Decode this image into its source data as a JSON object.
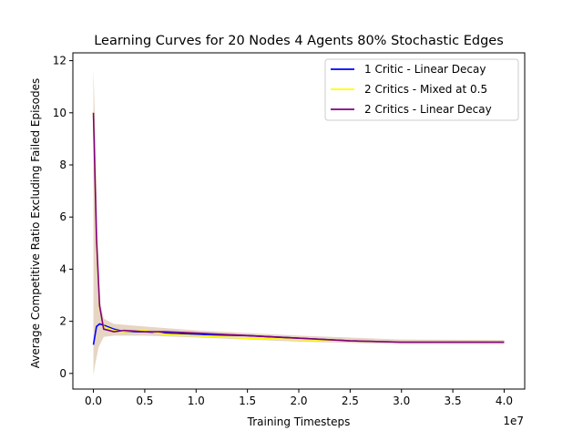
{
  "chart_data": {
    "type": "line",
    "title": "Learning Curves for 20 Nodes 4 Agents 80% Stochastic Edges",
    "xlabel": "Training Timesteps",
    "ylabel": "Average Competitive Ratio Excluding Failed Episodes",
    "x_offset_label": "1e7",
    "xlim": [
      -0.2,
      4.2
    ],
    "ylim": [
      -0.6,
      12.3
    ],
    "x_ticks": [
      0.0,
      0.5,
      1.0,
      1.5,
      2.0,
      2.5,
      3.0,
      3.5,
      4.0
    ],
    "x_tick_labels": [
      "0.0",
      "0.5",
      "1.0",
      "1.5",
      "2.0",
      "2.5",
      "3.0",
      "3.5",
      "4.0"
    ],
    "y_ticks": [
      0,
      2,
      4,
      6,
      8,
      10,
      12
    ],
    "y_tick_labels": [
      "0",
      "2",
      "4",
      "6",
      "8",
      "10",
      "12"
    ],
    "grid": false,
    "legend_position": "top-right",
    "series": [
      {
        "name": "1 Critic - Linear Decay",
        "color": "#0000ff",
        "x": [
          0,
          0.03,
          0.06,
          0.1,
          0.2,
          0.3,
          0.5,
          0.7,
          1.0,
          1.5,
          2.0,
          2.5,
          3.0,
          3.5,
          4.0
        ],
        "y": [
          1.1,
          1.8,
          1.9,
          1.85,
          1.7,
          1.6,
          1.6,
          1.55,
          1.5,
          1.45,
          1.35,
          1.25,
          1.2,
          1.2,
          1.2
        ]
      },
      {
        "name": "2 Critics - Mixed at 0.5",
        "color": "#ffff00",
        "x": [
          0,
          0.03,
          0.06,
          0.1,
          0.2,
          0.3,
          0.5,
          0.7,
          1.0,
          1.5,
          2.0,
          2.5,
          3.0,
          3.5,
          4.0
        ],
        "y": [
          10.0,
          5.0,
          2.5,
          1.8,
          1.65,
          1.6,
          1.65,
          1.5,
          1.45,
          1.35,
          1.3,
          1.25,
          1.2,
          1.2,
          1.2
        ]
      },
      {
        "name": "2 Critics - Linear Decay",
        "color": "#800080",
        "x": [
          0,
          0.03,
          0.06,
          0.1,
          0.2,
          0.3,
          0.5,
          0.7,
          1.0,
          1.5,
          2.0,
          2.5,
          3.0,
          3.5,
          4.0
        ],
        "y": [
          10.0,
          5.2,
          2.6,
          1.7,
          1.6,
          1.65,
          1.6,
          1.6,
          1.55,
          1.45,
          1.35,
          1.25,
          1.2,
          1.2,
          1.2
        ]
      }
    ]
  }
}
